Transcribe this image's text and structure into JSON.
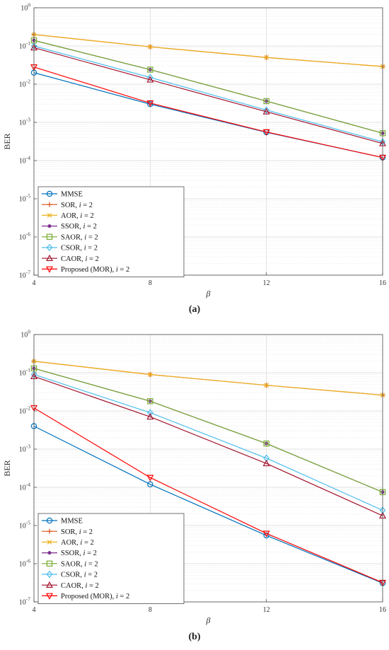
{
  "chart_data": [
    {
      "type": "line",
      "panel_label": "(a)",
      "xlabel": "β",
      "ylabel": "BER",
      "x": [
        4,
        8,
        12,
        16
      ],
      "xlim": [
        4,
        16
      ],
      "ylim": [
        1e-07,
        1
      ],
      "yscale": "log",
      "x_ticks": [
        "4",
        "8",
        "12",
        "16"
      ],
      "y_ticks": [
        "10^-7",
        "10^-6",
        "10^-5",
        "10^-4",
        "10^-3",
        "10^-2",
        "10^-1",
        "10^0"
      ],
      "grid": true,
      "legend_position": "bottom-left",
      "series": [
        {
          "name": "MMSE",
          "color": "#0072BD",
          "marker": "circle",
          "values": [
            0.02,
            0.003,
            0.00055,
            0.00012
          ]
        },
        {
          "name": "SOR, i = 2",
          "color": "#D95319",
          "marker": "plus",
          "values": [
            0.2,
            0.095,
            0.05,
            0.029
          ]
        },
        {
          "name": "AOR, i = 2",
          "color": "#EDB120",
          "marker": "x",
          "values": [
            0.2,
            0.095,
            0.05,
            0.029
          ]
        },
        {
          "name": "SSOR, i = 2",
          "color": "#7E2F8E",
          "marker": "dot",
          "values": [
            0.14,
            0.024,
            0.0036,
            0.00052
          ]
        },
        {
          "name": "SAOR, i = 2",
          "color": "#77AC30",
          "marker": "square",
          "values": [
            0.14,
            0.024,
            0.0036,
            0.00052
          ]
        },
        {
          "name": "CSOR, i = 2",
          "color": "#4DBEEE",
          "marker": "diamond",
          "values": [
            0.1,
            0.015,
            0.0021,
            0.00031
          ]
        },
        {
          "name": "CAOR, i = 2",
          "color": "#A2142F",
          "marker": "triangle-up",
          "values": [
            0.09,
            0.013,
            0.0019,
            0.00028
          ]
        },
        {
          "name": "Proposed (MOR), i = 2",
          "color": "#FF0000",
          "marker": "triangle-down",
          "values": [
            0.028,
            0.0032,
            0.00056,
            0.00012
          ]
        }
      ]
    },
    {
      "type": "line",
      "panel_label": "(b)",
      "xlabel": "β",
      "ylabel": "BER",
      "x": [
        4,
        8,
        12,
        16
      ],
      "xlim": [
        4,
        16
      ],
      "ylim": [
        1e-07,
        1
      ],
      "yscale": "log",
      "x_ticks": [
        "4",
        "8",
        "12",
        "16"
      ],
      "y_ticks": [
        "10^-7",
        "10^-6",
        "10^-5",
        "10^-4",
        "10^-3",
        "10^-2",
        "10^-1",
        "10^0"
      ],
      "grid": true,
      "legend_position": "bottom-left",
      "series": [
        {
          "name": "MMSE",
          "color": "#0072BD",
          "marker": "circle",
          "values": [
            0.004,
            0.00012,
            5.5e-06,
            3.1e-07
          ]
        },
        {
          "name": "SOR, i = 2",
          "color": "#D95319",
          "marker": "plus",
          "values": [
            0.2,
            0.09,
            0.047,
            0.026
          ]
        },
        {
          "name": "AOR, i = 2",
          "color": "#EDB120",
          "marker": "x",
          "values": [
            0.2,
            0.09,
            0.047,
            0.026
          ]
        },
        {
          "name": "SSOR, i = 2",
          "color": "#7E2F8E",
          "marker": "dot",
          "values": [
            0.13,
            0.018,
            0.0014,
            7.5e-05
          ]
        },
        {
          "name": "SAOR, i = 2",
          "color": "#77AC30",
          "marker": "square",
          "values": [
            0.13,
            0.018,
            0.0014,
            7.5e-05
          ]
        },
        {
          "name": "CSOR, i = 2",
          "color": "#4DBEEE",
          "marker": "diamond",
          "values": [
            0.09,
            0.009,
            0.00058,
            2.5e-05
          ]
        },
        {
          "name": "CAOR, i = 2",
          "color": "#A2142F",
          "marker": "triangle-up",
          "values": [
            0.08,
            0.007,
            0.00042,
            1.8e-05
          ]
        },
        {
          "name": "Proposed (MOR), i = 2",
          "color": "#FF0000",
          "marker": "triangle-down",
          "values": [
            0.012,
            0.00018,
            6.2e-06,
            3.2e-07
          ]
        }
      ]
    }
  ]
}
